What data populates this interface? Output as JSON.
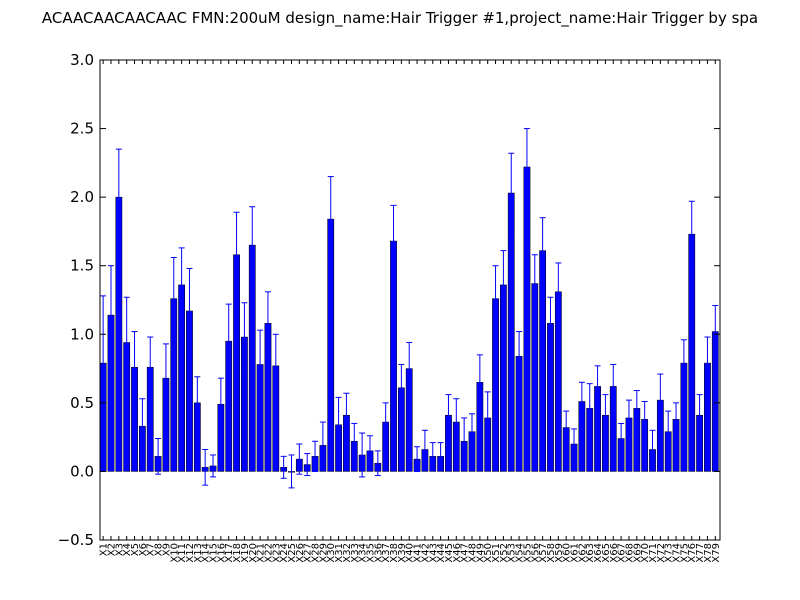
{
  "chart_data": {
    "type": "bar",
    "title": "ACAACAACAACAAC  FMN:200uM  design_name:Hair Trigger #1,project_name:Hair Trigger by spa",
    "xlabel": "",
    "ylabel": "",
    "ylim": [
      -0.5,
      3.0
    ],
    "yticks": [
      "−0.5",
      "0.0",
      "0.5",
      "1.0",
      "1.5",
      "2.0",
      "2.5",
      "3.0"
    ],
    "ytick_values": [
      -0.5,
      0.0,
      0.5,
      1.0,
      1.5,
      2.0,
      2.5,
      3.0
    ],
    "grid": false,
    "bar_color": "#0000ff",
    "error_color": "#0000ff",
    "categories": [
      "X1",
      "X2",
      "X3",
      "X4",
      "X5",
      "X6",
      "X7",
      "X8",
      "X9",
      "X10",
      "X11",
      "X12",
      "X13",
      "X14",
      "X15",
      "X16",
      "X17",
      "X18",
      "X19",
      "X20",
      "X21",
      "X22",
      "X23",
      "X24",
      "X25",
      "X26",
      "X27",
      "X28",
      "X29",
      "X30",
      "X31",
      "X32",
      "X33",
      "X34",
      "X35",
      "X36",
      "X37",
      "X38",
      "X39",
      "X40",
      "X41",
      "X42",
      "X43",
      "X44",
      "X45",
      "X46",
      "X47",
      "X48",
      "X49",
      "X50",
      "X51",
      "X52",
      "X53",
      "X54",
      "X55",
      "X56",
      "X57",
      "X58",
      "X59",
      "X60",
      "X61",
      "X62",
      "X63",
      "X64",
      "X65",
      "X66",
      "X67",
      "X68",
      "X69",
      "X70",
      "X71",
      "X72",
      "X73",
      "X74",
      "X75",
      "X76",
      "X77",
      "X78",
      "X79"
    ],
    "values": [
      0.79,
      1.14,
      2.0,
      0.94,
      0.76,
      0.33,
      0.76,
      0.11,
      0.68,
      1.26,
      1.36,
      1.17,
      0.5,
      0.03,
      0.04,
      0.49,
      0.95,
      1.58,
      0.98,
      1.65,
      0.78,
      1.08,
      0.77,
      0.03,
      0.0,
      0.09,
      0.05,
      0.11,
      0.19,
      1.84,
      0.34,
      0.41,
      0.22,
      0.12,
      0.15,
      0.06,
      0.36,
      1.68,
      0.61,
      0.75,
      0.09,
      0.16,
      0.11,
      0.11,
      0.41,
      0.36,
      0.22,
      0.29,
      0.65,
      0.39,
      1.26,
      1.36,
      2.03,
      0.84,
      2.22,
      1.37,
      1.61,
      1.08,
      1.31,
      0.32,
      0.2,
      0.51,
      0.46,
      0.62,
      0.41,
      0.62,
      0.24,
      0.39,
      0.46,
      0.38,
      0.16,
      0.52,
      0.29,
      0.38,
      0.79,
      1.73,
      0.41,
      0.79,
      1.02
    ],
    "errors": [
      0.49,
      0.36,
      0.35,
      0.33,
      0.26,
      0.2,
      0.22,
      0.13,
      0.25,
      0.3,
      0.27,
      0.31,
      0.19,
      0.13,
      0.08,
      0.19,
      0.27,
      0.31,
      0.25,
      0.28,
      0.25,
      0.23,
      0.23,
      0.08,
      0.12,
      0.11,
      0.08,
      0.11,
      0.17,
      0.31,
      0.2,
      0.16,
      0.13,
      0.16,
      0.11,
      0.09,
      0.14,
      0.26,
      0.17,
      0.19,
      0.09,
      0.14,
      0.1,
      0.1,
      0.15,
      0.17,
      0.17,
      0.13,
      0.2,
      0.19,
      0.24,
      0.25,
      0.29,
      0.18,
      0.28,
      0.21,
      0.24,
      0.19,
      0.21,
      0.12,
      0.11,
      0.14,
      0.18,
      0.15,
      0.15,
      0.16,
      0.11,
      0.13,
      0.13,
      0.13,
      0.14,
      0.19,
      0.15,
      0.12,
      0.17,
      0.24,
      0.15,
      0.19,
      0.19
    ]
  }
}
